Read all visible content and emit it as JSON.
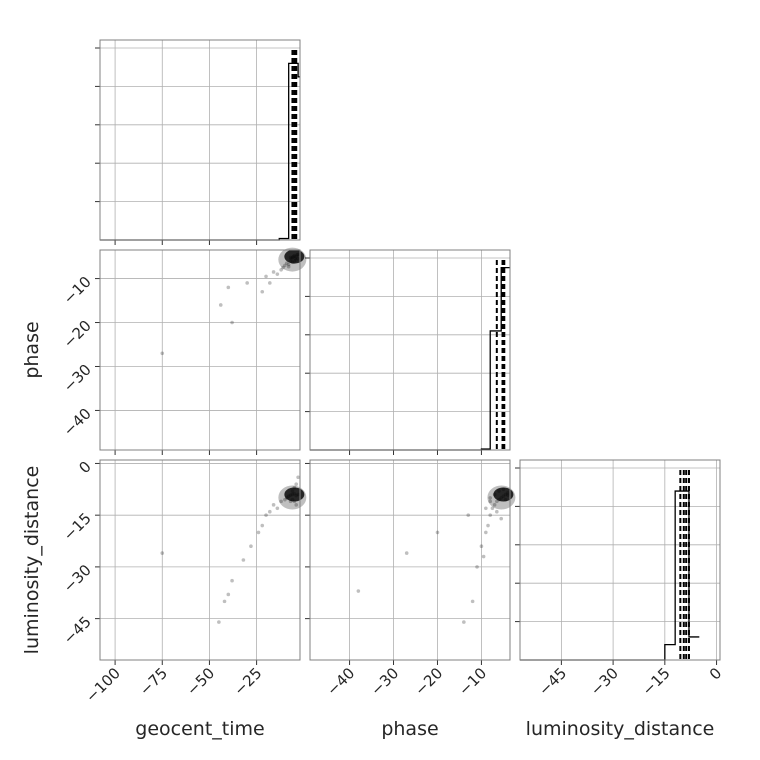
{
  "chart_data": {
    "type": "corner",
    "parameters": [
      "geocent_time",
      "phase",
      "luminosity_distance"
    ],
    "axis_labels": {
      "x": [
        "geocent_time",
        "phase",
        "luminosity_distance"
      ],
      "y": [
        "phase",
        "luminosity_distance"
      ]
    },
    "ranges": {
      "geocent_time": [
        -108,
        -2
      ],
      "phase": [
        -49,
        -3.5
      ],
      "luminosity_distance": [
        -57,
        1
      ]
    },
    "ticks": {
      "geocent_time": [
        -100,
        -75,
        -50,
        -25
      ],
      "phase": [
        -40,
        -30,
        -20,
        -10
      ],
      "luminosity_distance": [
        -45,
        -30,
        -15,
        0
      ]
    },
    "tick_labels": {
      "geocent_time": [
        "−100",
        "−75",
        "−50",
        "−25"
      ],
      "phase": [
        "−40",
        "−30",
        "−20",
        "−10"
      ],
      "luminosity_distance": [
        "−45",
        "−30",
        "−15",
        "0"
      ]
    },
    "quantiles": {
      "geocent_time": [
        -6,
        -5,
        -4.5,
        -4
      ],
      "phase": [
        -6.5,
        -5.2,
        -4.8
      ],
      "luminosity_distance": [
        -10.5,
        -9.5,
        -8.8,
        -8.0
      ]
    },
    "histograms": {
      "geocent_time": {
        "edges": [
          -13,
          -8,
          -3,
          -2
        ],
        "counts": [
          0.008,
          0.92,
          0.85
        ],
        "baseline": [
          -108,
          -13
        ]
      },
      "phase": {
        "edges": [
          -10,
          -8,
          -5.5,
          -3.5
        ],
        "counts": [
          0.005,
          0.62,
          0.95
        ],
        "baseline": [
          -49,
          -10
        ]
      },
      "luminosity_distance": {
        "edges": [
          -15,
          -12,
          -8,
          -5
        ],
        "counts": [
          0.08,
          0.88,
          0.12
        ],
        "baseline": [
          -57,
          -15
        ]
      }
    },
    "scatter": {
      "phase_vs_geocent_time": [
        [
          -75,
          -27
        ],
        [
          -44,
          -16
        ],
        [
          -38,
          -20
        ],
        [
          -40,
          -12
        ],
        [
          -30,
          -11
        ],
        [
          -22,
          -13
        ],
        [
          -20,
          -9.5
        ],
        [
          -18,
          -11
        ],
        [
          -16,
          -8.5
        ],
        [
          -14,
          -9
        ],
        [
          -12,
          -8
        ],
        [
          -11,
          -7.5
        ],
        [
          -10,
          -7
        ],
        [
          -9,
          -6.5
        ],
        [
          -8,
          -6.8
        ],
        [
          -7,
          -6
        ],
        [
          -6.5,
          -5.5
        ],
        [
          -6,
          -5.2
        ],
        [
          -5.5,
          -5
        ],
        [
          -5,
          -4.8
        ],
        [
          -4.5,
          -5.4
        ],
        [
          -4,
          -5
        ],
        [
          -3.5,
          -4.6
        ],
        [
          -3,
          -4.5
        ],
        [
          -6,
          -6.3
        ],
        [
          -5,
          -6
        ],
        [
          -4,
          -5.8
        ],
        [
          -3,
          -5.5
        ],
        [
          -7,
          -5.2
        ],
        [
          -8,
          -7.3
        ]
      ],
      "luminosity_distance_vs_geocent_time": [
        [
          -75,
          -26
        ],
        [
          -45,
          -46
        ],
        [
          -42,
          -40
        ],
        [
          -40,
          -38
        ],
        [
          -38,
          -34
        ],
        [
          -32,
          -28
        ],
        [
          -28,
          -24
        ],
        [
          -24,
          -20
        ],
        [
          -22,
          -18
        ],
        [
          -20,
          -15
        ],
        [
          -18,
          -14
        ],
        [
          -16,
          -12
        ],
        [
          -14,
          -13
        ],
        [
          -12,
          -11
        ],
        [
          -10,
          -10.5
        ],
        [
          -9,
          -10
        ],
        [
          -8,
          -9.5
        ],
        [
          -7,
          -9.2
        ],
        [
          -6,
          -9
        ],
        [
          -5,
          -8.8
        ],
        [
          -4,
          -9.3
        ],
        [
          -3,
          -9
        ],
        [
          -6,
          -10.5
        ],
        [
          -5,
          -11
        ],
        [
          -4,
          -12
        ],
        [
          -3,
          -4
        ],
        [
          -4,
          -6
        ],
        [
          -5,
          -7
        ],
        [
          -6,
          -8
        ],
        [
          -7,
          -11
        ]
      ],
      "luminosity_distance_vs_phase": [
        [
          -38,
          -37
        ],
        [
          -27,
          -26
        ],
        [
          -20,
          -20
        ],
        [
          -14,
          -46
        ],
        [
          -12,
          -40
        ],
        [
          -11,
          -30
        ],
        [
          -13,
          -15
        ],
        [
          -10,
          -24
        ],
        [
          -9.5,
          -27
        ],
        [
          -9,
          -20
        ],
        [
          -8.5,
          -18
        ],
        [
          -8,
          -15
        ],
        [
          -7.5,
          -13
        ],
        [
          -7,
          -12
        ],
        [
          -6.5,
          -11
        ],
        [
          -6,
          -10.5
        ],
        [
          -5.5,
          -10
        ],
        [
          -5,
          -9.5
        ],
        [
          -4.5,
          -9
        ],
        [
          -4,
          -9.2
        ],
        [
          -6,
          -8
        ],
        [
          -5,
          -7.5
        ],
        [
          -4,
          -8.5
        ],
        [
          -7,
          -9
        ],
        [
          -8,
          -11
        ],
        [
          -9,
          -13
        ],
        [
          -6.5,
          -14
        ],
        [
          -5.5,
          -16
        ],
        [
          -8,
          -10
        ],
        [
          -4.5,
          -10.5
        ]
      ]
    },
    "dense_cores": {
      "phase_vs_geocent_time": [
        -5,
        -5
      ],
      "luminosity_distance_vs_geocent_time": [
        -5,
        -9
      ],
      "luminosity_distance_vs_phase": [
        -5,
        -9
      ]
    },
    "grid": true,
    "colors": {
      "data": "#000000",
      "grid": "#b0b0b0",
      "frame": "#808080"
    }
  }
}
